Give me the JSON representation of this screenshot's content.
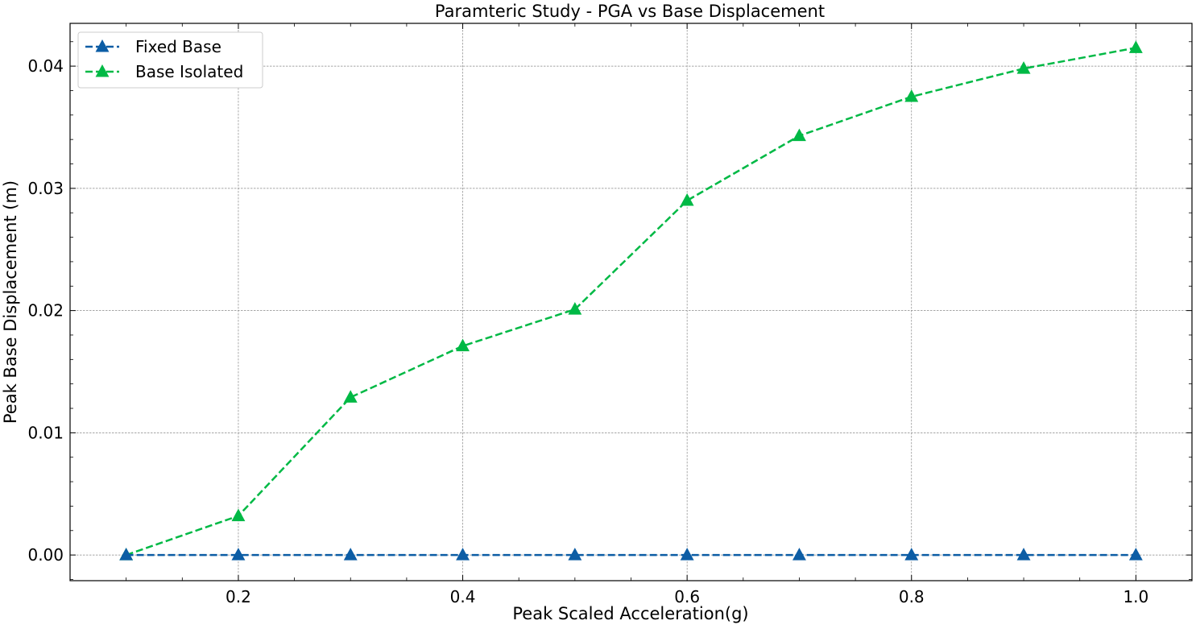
{
  "chart_data": {
    "type": "line",
    "title": "Paramteric Study - PGA vs Base Displacement",
    "xlabel": "Peak Scaled Acceleration(g)",
    "ylabel": "Peak Base Displacement (m)",
    "xlim": [
      0.05,
      1.05
    ],
    "ylim": [
      -0.0021,
      0.0435
    ],
    "x_ticks": [
      0.2,
      0.4,
      0.6,
      0.8,
      1.0
    ],
    "x_tick_labels": [
      "0.2",
      "0.4",
      "0.6",
      "0.8",
      "1.0"
    ],
    "y_ticks": [
      0.0,
      0.01,
      0.02,
      0.03,
      0.04
    ],
    "y_tick_labels": [
      "0.00",
      "0.01",
      "0.02",
      "0.03",
      "0.04"
    ],
    "grid": true,
    "legend_position": "top-left",
    "x": [
      0.1,
      0.2,
      0.3,
      0.4,
      0.5,
      0.6,
      0.7,
      0.8,
      0.9,
      1.0
    ],
    "series": [
      {
        "name": "Fixed Base",
        "color": "#0c5da5",
        "marker": "triangle",
        "linestyle": "dashed",
        "values": [
          0,
          0,
          0,
          0,
          0,
          0,
          0,
          0,
          0,
          0
        ]
      },
      {
        "name": "Base Isolated",
        "color": "#00b945",
        "marker": "triangle",
        "linestyle": "dashed",
        "values": [
          0.0,
          0.0032,
          0.0129,
          0.0171,
          0.0201,
          0.029,
          0.0343,
          0.0375,
          0.0398,
          0.0415
        ]
      }
    ]
  }
}
